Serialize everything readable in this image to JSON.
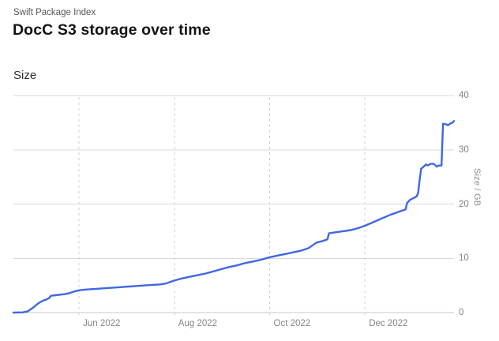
{
  "header": {
    "site": "Swift Package Index",
    "title": "DocC S3 storage over time"
  },
  "chart": {
    "label": "Size",
    "y_axis_title": "Size / GB"
  },
  "chart_data": {
    "type": "line",
    "title": "DocC S3 storage over time",
    "series_label": "Size",
    "ylabel": "Size / GB",
    "ylim": [
      0,
      40
    ],
    "grid": true,
    "legend": false,
    "line_color": "#4067e2",
    "grid_color": "#d9d9db",
    "baseline_color": "#c7c7c9",
    "x_grid_color": "#cfcfd1",
    "y_ticks": [
      "0",
      "10",
      "20",
      "30",
      "40"
    ],
    "x_ticks": [
      {
        "label": "Jun 2022",
        "date": "2022-06-01"
      },
      {
        "label": "Aug 2022",
        "date": "2022-08-01"
      },
      {
        "label": "Oct 2022",
        "date": "2022-10-01"
      },
      {
        "label": "Dec 2022",
        "date": "2022-12-01"
      }
    ],
    "x_range": [
      "2022-04-20",
      "2023-01-27"
    ],
    "points": [
      [
        "2022-04-20",
        0.0
      ],
      [
        "2022-04-26",
        0.05
      ],
      [
        "2022-04-29",
        0.2
      ],
      [
        "2022-05-01",
        0.6
      ],
      [
        "2022-05-03",
        1.0
      ],
      [
        "2022-05-05",
        1.5
      ],
      [
        "2022-05-07",
        1.9
      ],
      [
        "2022-05-09",
        2.2
      ],
      [
        "2022-05-11",
        2.4
      ],
      [
        "2022-05-13",
        2.7
      ],
      [
        "2022-05-14",
        3.1
      ],
      [
        "2022-05-17",
        3.2
      ],
      [
        "2022-05-20",
        3.3
      ],
      [
        "2022-05-23",
        3.4
      ],
      [
        "2022-05-26",
        3.6
      ],
      [
        "2022-05-29",
        3.9
      ],
      [
        "2022-06-01",
        4.1
      ],
      [
        "2022-06-04",
        4.2
      ],
      [
        "2022-06-08",
        4.3
      ],
      [
        "2022-06-13",
        4.4
      ],
      [
        "2022-06-18",
        4.5
      ],
      [
        "2022-06-23",
        4.6
      ],
      [
        "2022-06-28",
        4.7
      ],
      [
        "2022-07-03",
        4.8
      ],
      [
        "2022-07-08",
        4.9
      ],
      [
        "2022-07-13",
        5.0
      ],
      [
        "2022-07-18",
        5.1
      ],
      [
        "2022-07-23",
        5.2
      ],
      [
        "2022-07-27",
        5.4
      ],
      [
        "2022-07-30",
        5.7
      ],
      [
        "2022-08-01",
        5.9
      ],
      [
        "2022-08-06",
        6.3
      ],
      [
        "2022-08-11",
        6.6
      ],
      [
        "2022-08-16",
        6.9
      ],
      [
        "2022-08-21",
        7.2
      ],
      [
        "2022-08-26",
        7.6
      ],
      [
        "2022-08-31",
        8.0
      ],
      [
        "2022-09-05",
        8.4
      ],
      [
        "2022-09-10",
        8.7
      ],
      [
        "2022-09-15",
        9.1
      ],
      [
        "2022-09-20",
        9.4
      ],
      [
        "2022-09-25",
        9.7
      ],
      [
        "2022-10-01",
        10.2
      ],
      [
        "2022-10-06",
        10.5
      ],
      [
        "2022-10-11",
        10.8
      ],
      [
        "2022-10-16",
        11.1
      ],
      [
        "2022-10-21",
        11.4
      ],
      [
        "2022-10-26",
        11.9
      ],
      [
        "2022-10-31",
        12.9
      ],
      [
        "2022-11-04",
        13.2
      ],
      [
        "2022-11-07",
        13.5
      ],
      [
        "2022-11-08",
        14.6
      ],
      [
        "2022-11-12",
        14.8
      ],
      [
        "2022-11-17",
        15.0
      ],
      [
        "2022-11-22",
        15.2
      ],
      [
        "2022-11-26",
        15.5
      ],
      [
        "2022-12-01",
        16.0
      ],
      [
        "2022-12-05",
        16.5
      ],
      [
        "2022-12-09",
        17.0
      ],
      [
        "2022-12-13",
        17.5
      ],
      [
        "2022-12-17",
        18.0
      ],
      [
        "2022-12-21",
        18.4
      ],
      [
        "2022-12-24",
        18.7
      ],
      [
        "2022-12-27",
        19.0
      ],
      [
        "2022-12-28",
        20.2
      ],
      [
        "2022-12-30",
        20.8
      ],
      [
        "2023-01-01",
        21.1
      ],
      [
        "2023-01-03",
        21.4
      ],
      [
        "2023-01-04",
        22.0
      ],
      [
        "2023-01-05",
        24.5
      ],
      [
        "2023-01-06",
        26.5
      ],
      [
        "2023-01-08",
        27.0
      ],
      [
        "2023-01-09",
        27.3
      ],
      [
        "2023-01-10",
        27.1
      ],
      [
        "2023-01-12",
        27.4
      ],
      [
        "2023-01-14",
        27.4
      ],
      [
        "2023-01-16",
        26.9
      ],
      [
        "2023-01-17",
        27.1
      ],
      [
        "2023-01-19",
        27.1
      ],
      [
        "2023-01-20",
        34.8
      ],
      [
        "2023-01-22",
        34.7
      ],
      [
        "2023-01-23",
        34.5
      ],
      [
        "2023-01-25",
        34.9
      ],
      [
        "2023-01-26",
        35.0
      ],
      [
        "2023-01-27",
        35.3
      ]
    ]
  }
}
